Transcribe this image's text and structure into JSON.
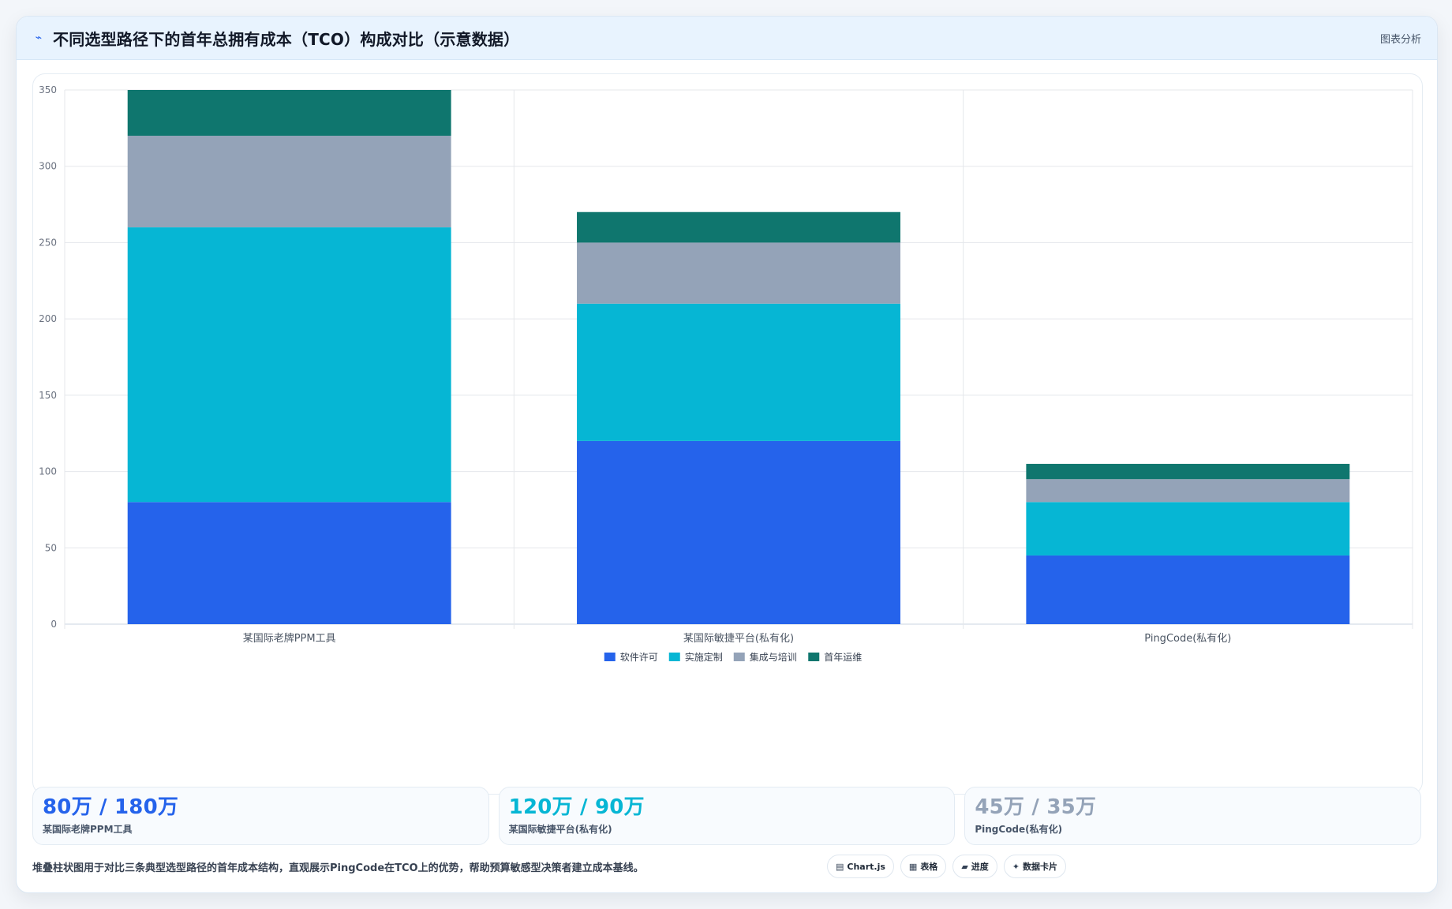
{
  "header": {
    "icon": "line-chart-icon",
    "title": "不同选型路径下的首年总拥有成本（TCO）构成对比（示意数据）",
    "action_label": "图表分析"
  },
  "chart_data": {
    "type": "bar",
    "stacked": true,
    "categories": [
      "某国际老牌PPM工具",
      "某国际敏捷平台(私有化)",
      "PingCode(私有化)"
    ],
    "series": [
      {
        "name": "软件许可",
        "color": "#2563eb",
        "values": [
          80,
          120,
          45
        ]
      },
      {
        "name": "实施定制",
        "color": "#06b6d4",
        "values": [
          180,
          90,
          35
        ]
      },
      {
        "name": "集成与培训",
        "color": "#94a3b8",
        "values": [
          60,
          40,
          15
        ]
      },
      {
        "name": "首年运维",
        "color": "#0f766e",
        "values": [
          30,
          20,
          10
        ]
      }
    ],
    "yticks": [
      0,
      50,
      100,
      150,
      200,
      250,
      300,
      350
    ],
    "ylim": [
      0,
      350
    ],
    "grid": true,
    "legend_position": "bottom"
  },
  "stats": [
    {
      "value": "80万 / 180万",
      "label": "某国际老牌PPM工具",
      "color": "#2563eb"
    },
    {
      "value": "120万 / 90万",
      "label": "某国际敏捷平台(私有化)",
      "color": "#06b6d4"
    },
    {
      "value": "45万 / 35万",
      "label": "PingCode(私有化)",
      "color": "#94a3b8"
    }
  ],
  "footer": {
    "description": "堆叠柱状图用于对比三条典型选型路径的首年成本结构，直观展示PingCode在TCO上的优势，帮助预算敏感型决策者建立成本基线。",
    "chips": [
      {
        "icon": "chart-icon",
        "glyph": "▤",
        "label": "Chart.js"
      },
      {
        "icon": "table-icon",
        "glyph": "▦",
        "label": "表格"
      },
      {
        "icon": "progress-icon",
        "glyph": "▰",
        "label": "进度"
      },
      {
        "icon": "sparkle-icon",
        "glyph": "✦",
        "label": "数据卡片"
      }
    ]
  }
}
